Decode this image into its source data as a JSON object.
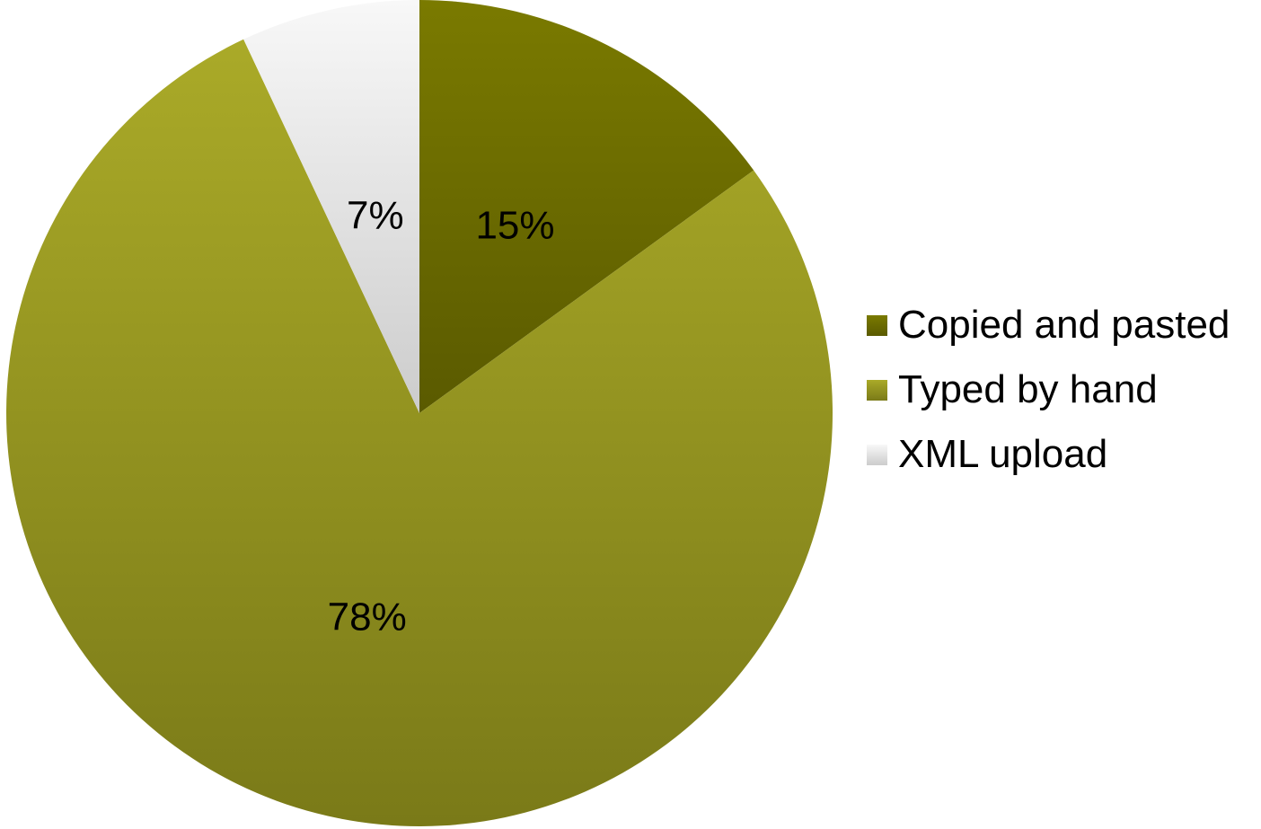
{
  "chart_data": {
    "type": "pie",
    "start_angle_deg": 0,
    "direction": "clockwise",
    "legend_position": "right",
    "slices": [
      {
        "label": "Copied and pasted",
        "value": 15,
        "value_label": "15%",
        "color_light": "#7a7a00",
        "color_dark": "#5a5a00"
      },
      {
        "label": "Typed by hand",
        "value": 78,
        "value_label": "78%",
        "color_light": "#aaaa28",
        "color_dark": "#7a7a18"
      },
      {
        "label": "XML upload",
        "value": 7,
        "value_label": "7%",
        "color_light": "#f8f8f8",
        "color_dark": "#cccccc"
      }
    ]
  }
}
